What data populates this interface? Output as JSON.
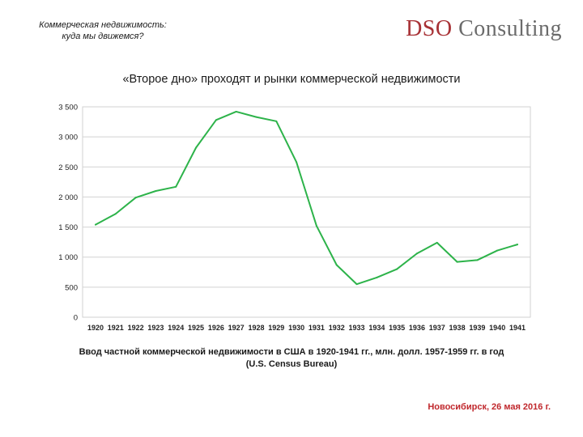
{
  "header": {
    "subtitle_line1": "Коммерческая недвижимость:",
    "subtitle_line2": "куда мы движемся?",
    "logo_part1": "DSO",
    "logo_part2": "Consulting",
    "logo_colors": {
      "dso": "#a83236",
      "consulting": "#6b6b6b"
    }
  },
  "slide_title": "«Второе дно» проходят и рынки коммерческой недвижимости",
  "chart_data": {
    "type": "line",
    "title": "",
    "xlabel": "",
    "ylabel": "",
    "categories": [
      "1920",
      "1921",
      "1922",
      "1923",
      "1924",
      "1925",
      "1926",
      "1927",
      "1928",
      "1929",
      "1930",
      "1931",
      "1932",
      "1933",
      "1934",
      "1935",
      "1936",
      "1937",
      "1938",
      "1939",
      "1940",
      "1941"
    ],
    "y_tick_labels": [
      "0",
      "500",
      "1 000",
      "1 500",
      "2 000",
      "2 500",
      "3 000",
      "3 500"
    ],
    "series": [
      {
        "values": [
          1540,
          1720,
          1990,
          2100,
          2170,
          2820,
          3280,
          3420,
          3330,
          3260,
          2580,
          1520,
          870,
          550,
          660,
          800,
          1060,
          1240,
          920,
          950,
          1110,
          1210
        ],
        "color": "#2db34a"
      }
    ],
    "ylim": [
      0,
      3500
    ],
    "grid": true,
    "legend": "none"
  },
  "caption": {
    "line1": "Ввод частной коммерческой недвижимости в США в 1920-1941 гг., млн. долл. 1957-1959 гг. в год",
    "line2": "(U.S. Census Bureau)"
  },
  "footer": "Новосибирск, 26 мая 2016 г."
}
